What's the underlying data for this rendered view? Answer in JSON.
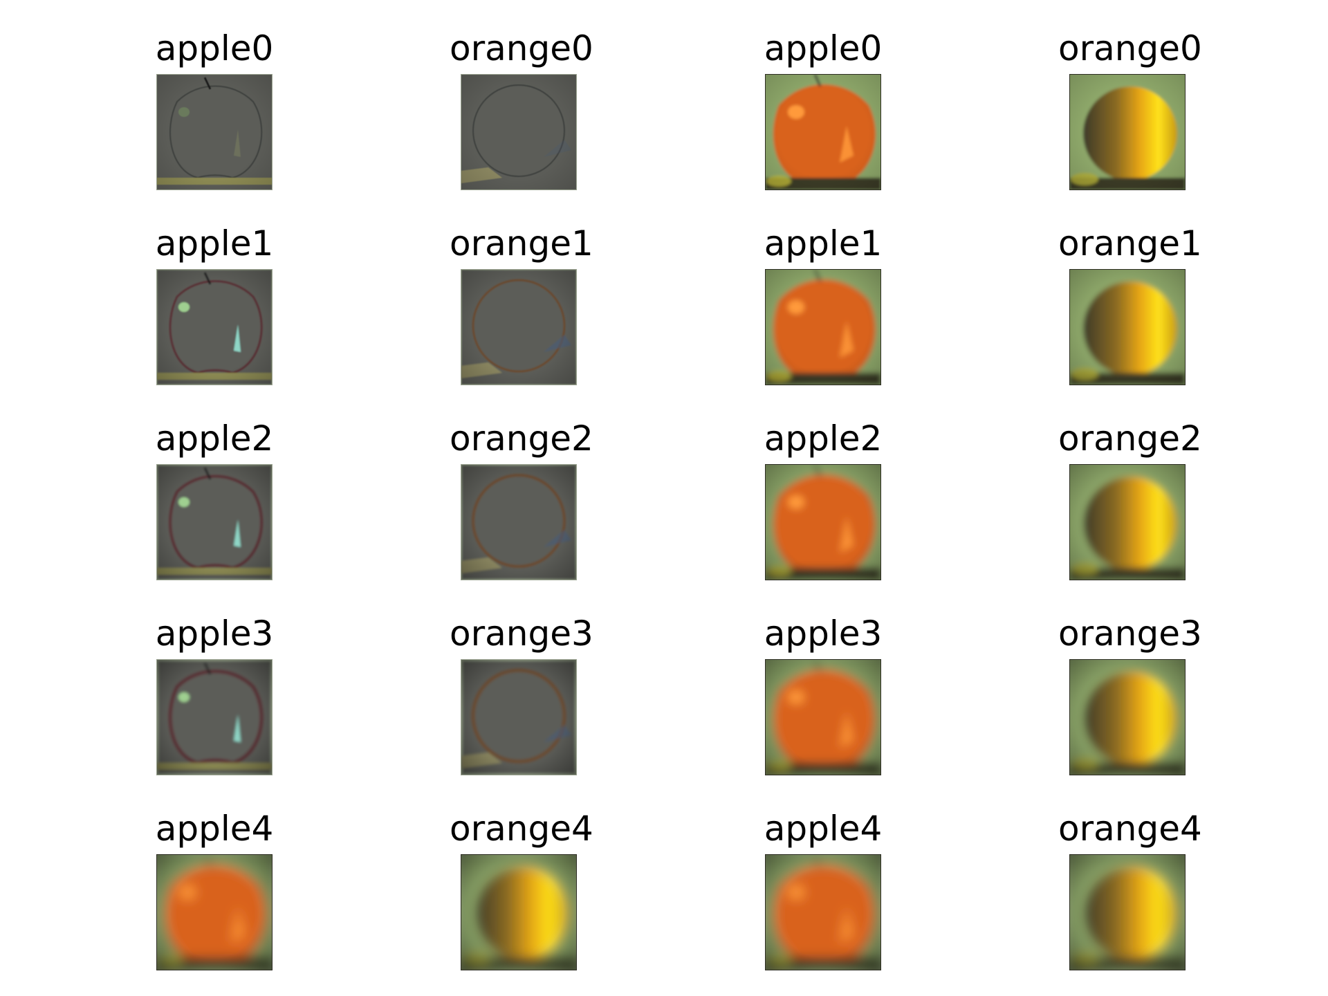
{
  "figure": {
    "background": "#ffffff",
    "columns": [
      {
        "kind": "laplacian",
        "fruit": "apple"
      },
      {
        "kind": "laplacian",
        "fruit": "orange"
      },
      {
        "kind": "gaussian",
        "fruit": "apple"
      },
      {
        "kind": "gaussian",
        "fruit": "orange"
      }
    ],
    "rows": [
      {
        "titles": [
          "apple0",
          "orange0",
          "apple0",
          "orange0"
        ]
      },
      {
        "titles": [
          "apple1",
          "orange1",
          "apple1",
          "orange1"
        ]
      },
      {
        "titles": [
          "apple2",
          "orange2",
          "apple2",
          "orange2"
        ]
      },
      {
        "titles": [
          "apple3",
          "orange3",
          "apple3",
          "orange3"
        ]
      },
      {
        "titles": [
          "apple4",
          "orange4",
          "apple4",
          "orange4"
        ]
      }
    ],
    "colors": {
      "apple_body": "#d9621a",
      "apple_highlight": "#ff9a3a",
      "orange_body": "#e6a516",
      "orange_highlight": "#ffe21a",
      "background_green": "#8ea86a",
      "laplacian_gray": "#5b5d58"
    }
  }
}
